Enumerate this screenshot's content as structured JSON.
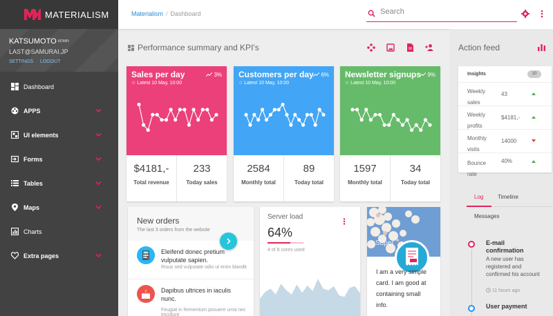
{
  "app": {
    "name": "MATERIALISM",
    "brand_color": "#e0245a"
  },
  "user": {
    "name": "KATSUMOTO",
    "role": "ADMIN",
    "email": "LAST@SAMURAI.JP",
    "settings": "SETTINGS",
    "logout": "LOGOUT"
  },
  "nav": [
    {
      "label": "Dashboard",
      "icon": "dashboard-icon",
      "chevron": false,
      "bold": false
    },
    {
      "label": "APPS",
      "icon": "apps-icon",
      "chevron": true,
      "bold": true
    },
    {
      "label": "UI elements",
      "icon": "ui-elements-icon",
      "chevron": true,
      "bold": true
    },
    {
      "label": "Forms",
      "icon": "forms-icon",
      "chevron": true,
      "bold": true
    },
    {
      "label": "Tables",
      "icon": "tables-icon",
      "chevron": true,
      "bold": true
    },
    {
      "label": "Maps",
      "icon": "map-pin-icon",
      "chevron": true,
      "bold": true
    },
    {
      "label": "Charts",
      "icon": "charts-icon",
      "chevron": false,
      "bold": false
    },
    {
      "label": "Extra pages",
      "icon": "heart-icon",
      "chevron": true,
      "bold": true
    }
  ],
  "breadcrumb": {
    "root": "Materialism",
    "sep": "/",
    "current": "Dashboard"
  },
  "search": {
    "placeholder": "Search",
    "value": ""
  },
  "perf": {
    "title": "Performance summary and KPI's",
    "actions": [
      "share-icon",
      "image-icon",
      "document-icon",
      "add-user-icon"
    ]
  },
  "kpis": [
    {
      "title": "Sales per day",
      "sub": "Latest 10 May, 10:00",
      "pct": "3%",
      "color": "#ec407a",
      "stats": [
        {
          "value": "$4181,-",
          "label": "Total revenue"
        },
        {
          "value": "233",
          "label": "Today sales"
        }
      ],
      "chart_values": [
        8,
        4,
        3,
        6,
        6,
        5,
        5,
        7,
        5,
        7,
        7,
        4,
        7,
        5,
        7,
        7,
        5,
        6
      ]
    },
    {
      "title": "Customers per day",
      "sub": "Latest 10 May, 10:00",
      "pct": "6%",
      "color": "#42a5f5",
      "stats": [
        {
          "value": "2584",
          "label": "Monthly total"
        },
        {
          "value": "89",
          "label": "Today total"
        }
      ],
      "chart_values": [
        6,
        4,
        6,
        5,
        7,
        5,
        6,
        7,
        7,
        8,
        6,
        4,
        6,
        5,
        4,
        6,
        6,
        4,
        7,
        6
      ]
    },
    {
      "title": "Newsletter signups",
      "sub": "Latest 10 May, 10:00",
      "pct": "9%",
      "color": "#66bb6a",
      "stats": [
        {
          "value": "1597",
          "label": "Monthly total"
        },
        {
          "value": "34",
          "label": "Today total"
        }
      ],
      "chart_values": [
        7,
        7,
        5,
        7,
        5,
        6,
        6,
        4,
        4,
        6,
        5,
        4,
        5,
        3,
        4,
        3,
        5,
        4
      ]
    }
  ],
  "orders": {
    "title": "New orders",
    "subtitle": "The last 3 orders from the website",
    "items": [
      {
        "title": "Eleifend donec pretium vulputate sapien.",
        "sub": "Risus sed vulputate odio ut enim blandit",
        "icon": "calculator-icon",
        "color": "#29b6f6"
      },
      {
        "title": "Dapibus ultrices in iaculis nunc.",
        "sub": "Feugiat in fermentum posuere urna nec tincidunt",
        "icon": "cake-icon",
        "color": "#ef5350"
      }
    ]
  },
  "server": {
    "title": "Server load",
    "value": "64%",
    "percent": 64,
    "sub": "4 of 8 cores used",
    "graph_values": [
      0.42,
      0.58,
      0.66,
      0.52,
      0.78,
      0.62,
      0.52,
      0.76,
      0.56,
      0.74,
      0.6,
      0.9,
      0.66,
      0.62,
      0.72,
      0.5,
      0.46,
      0.68,
      0.72,
      0.55
    ]
  },
  "card": {
    "photo_label": "Super",
    "text": "I am a very simple card. I am good at containing small info."
  },
  "feed": {
    "title": "Action feed",
    "insights_label": "Insights",
    "insights_count": "10",
    "insights": [
      {
        "label": "Weekly sales",
        "value": "43",
        "trend": "up"
      },
      {
        "label": "Weekly profits",
        "value": "$4181,-",
        "trend": "up"
      },
      {
        "label": "Monthly visits",
        "value": "14000",
        "trend": "down"
      },
      {
        "label": "Bounce rate",
        "value": "40%",
        "trend": "up"
      }
    ],
    "tabs": [
      "Log",
      "Timeline",
      "Messages"
    ],
    "events": [
      {
        "title": "E-mail confirmation",
        "text": "A new user has registered and confirmed his account",
        "time": "11 hours ago",
        "color": "#e0245a"
      },
      {
        "title": "User payment",
        "color": "#2196f3"
      }
    ]
  }
}
